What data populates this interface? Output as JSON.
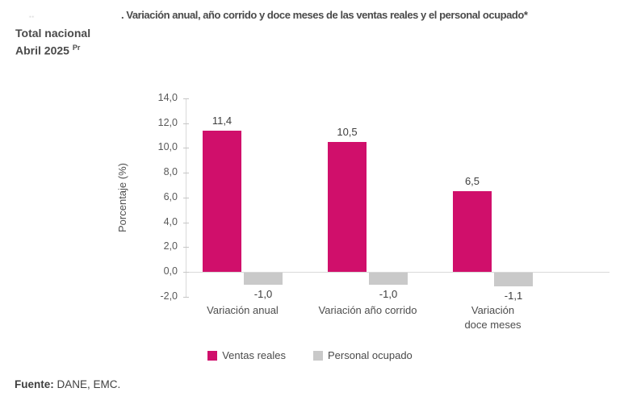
{
  "header": {
    "figure_mark": "··",
    "title": ". Variación anual, año corrido y doce meses de las ventas reales y el personal ocupado*",
    "subtitle": "Total nacional",
    "period": "Abril 2025",
    "period_superscript": "Pr"
  },
  "chart_data": {
    "type": "bar",
    "title": "Variación anual, año corrido y doce meses de las ventas reales y el personal ocupado* - Total nacional - Abril 2025",
    "categories": [
      "Variación anual",
      "Variación año corrido",
      "Variación\ndoce meses"
    ],
    "series": [
      {
        "name": "Ventas reales",
        "color": "#d00f6b",
        "values": [
          11.4,
          10.5,
          6.5
        ],
        "labels": [
          "11,4",
          "10,5",
          "6,5"
        ]
      },
      {
        "name": "Personal ocupado",
        "color": "#c9c9c9",
        "values": [
          -1.0,
          -1.0,
          -1.1
        ],
        "labels": [
          "-1,0",
          "-1,0",
          "-1,1"
        ]
      }
    ],
    "ylabel": "Porcentaje (%)",
    "ylim": [
      -2,
      14
    ],
    "yticks": [
      14,
      12,
      10,
      8,
      6,
      4,
      2,
      0,
      -2
    ],
    "ytick_labels": [
      "14,0",
      "12,0",
      "10,0",
      "8,0",
      "6,0",
      "4,0",
      "2,0",
      "0,0",
      "-2,0"
    ],
    "grid": false,
    "legend_position": "bottom"
  },
  "footer": {
    "source_label": "Fuente:",
    "source_text": " DANE, EMC."
  }
}
